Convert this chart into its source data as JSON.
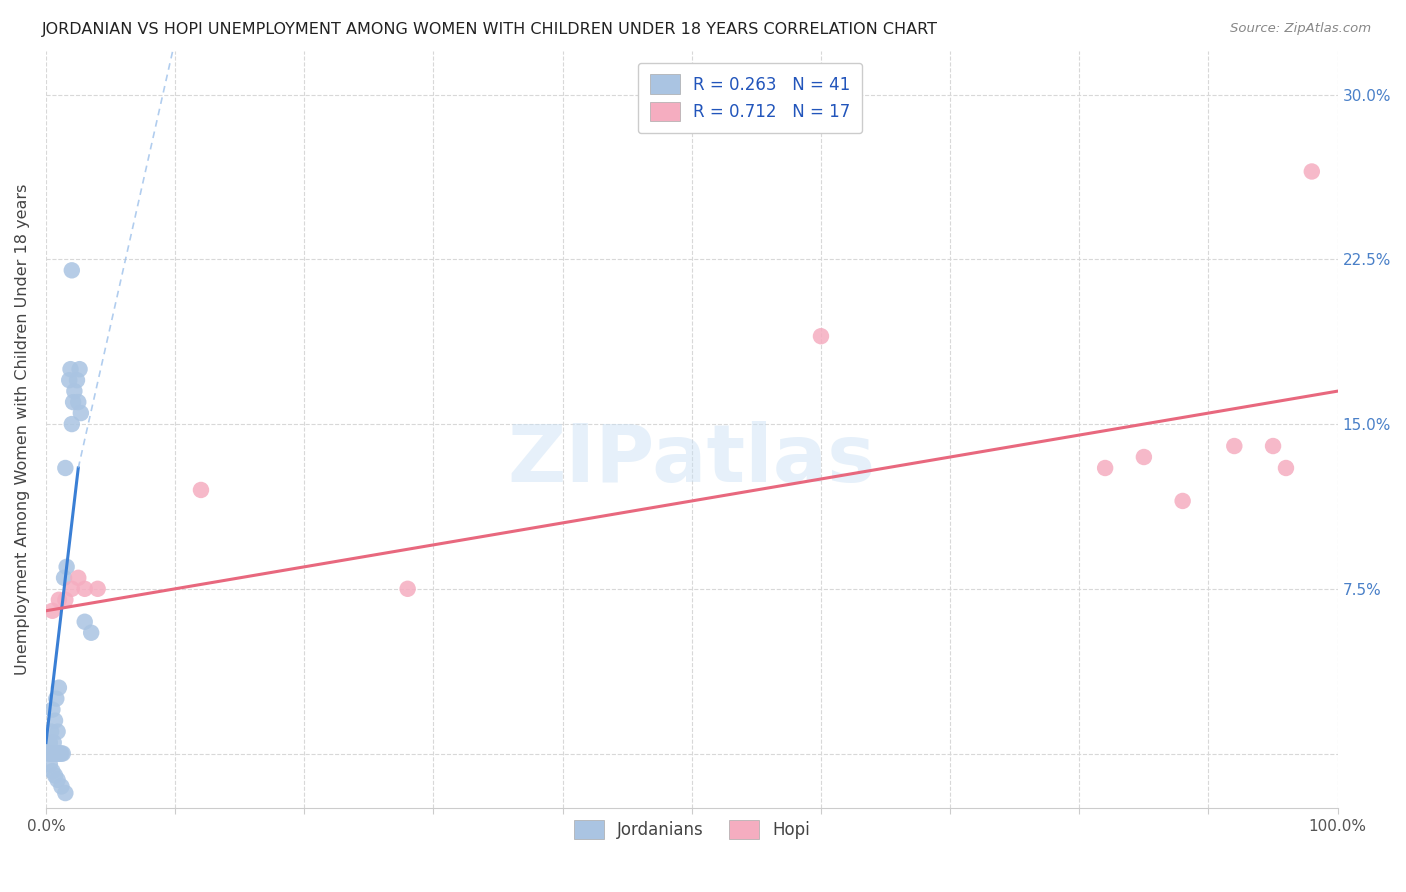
{
  "title": "JORDANIAN VS HOPI UNEMPLOYMENT AMONG WOMEN WITH CHILDREN UNDER 18 YEARS CORRELATION CHART",
  "source": "Source: ZipAtlas.com",
  "ylabel": "Unemployment Among Women with Children Under 18 years",
  "xlim": [
    0.0,
    1.0
  ],
  "ylim": [
    -0.025,
    0.32
  ],
  "xticks": [
    0.0,
    0.1,
    0.2,
    0.3,
    0.4,
    0.5,
    0.6,
    0.7,
    0.8,
    0.9,
    1.0
  ],
  "xtick_labels": [
    "0.0%",
    "",
    "",
    "",
    "",
    "",
    "",
    "",
    "",
    "",
    "100.0%"
  ],
  "yticks": [
    0.0,
    0.075,
    0.15,
    0.225,
    0.3
  ],
  "ytick_labels": [
    "",
    "7.5%",
    "15.0%",
    "22.5%",
    "30.0%"
  ],
  "background_color": "#ffffff",
  "grid_color": "#d8d8d8",
  "watermark_text": "ZIPatlas",
  "jordanian_color": "#aac4e2",
  "hopi_color": "#f5adc0",
  "jordanian_line_color": "#3a7fd5",
  "jordanian_dashed_color": "#90b8e8",
  "hopi_line_color": "#e8687e",
  "jordanian_scatter": [
    [
      0.002,
      0.0
    ],
    [
      0.003,
      0.0
    ],
    [
      0.004,
      0.0
    ],
    [
      0.005,
      0.0
    ],
    [
      0.006,
      0.0
    ],
    [
      0.007,
      0.0
    ],
    [
      0.008,
      0.0
    ],
    [
      0.009,
      0.0
    ],
    [
      0.01,
      0.0
    ],
    [
      0.011,
      0.0
    ],
    [
      0.012,
      0.0
    ],
    [
      0.013,
      0.0
    ],
    [
      0.003,
      0.005
    ],
    [
      0.006,
      0.005
    ],
    [
      0.009,
      0.01
    ],
    [
      0.004,
      0.01
    ],
    [
      0.007,
      0.015
    ],
    [
      0.005,
      0.02
    ],
    [
      0.008,
      0.025
    ],
    [
      0.01,
      0.03
    ],
    [
      0.014,
      0.08
    ],
    [
      0.016,
      0.085
    ],
    [
      0.015,
      0.13
    ],
    [
      0.02,
      0.15
    ],
    [
      0.021,
      0.16
    ],
    [
      0.022,
      0.165
    ],
    [
      0.024,
      0.17
    ],
    [
      0.026,
      0.175
    ],
    [
      0.018,
      0.17
    ],
    [
      0.019,
      0.175
    ],
    [
      0.025,
      0.16
    ],
    [
      0.027,
      0.155
    ],
    [
      0.02,
      0.22
    ],
    [
      0.03,
      0.06
    ],
    [
      0.035,
      0.055
    ],
    [
      0.003,
      -0.005
    ],
    [
      0.005,
      -0.008
    ],
    [
      0.007,
      -0.01
    ],
    [
      0.009,
      -0.012
    ],
    [
      0.012,
      -0.015
    ],
    [
      0.015,
      -0.018
    ]
  ],
  "hopi_scatter": [
    [
      0.005,
      0.065
    ],
    [
      0.01,
      0.07
    ],
    [
      0.015,
      0.07
    ],
    [
      0.02,
      0.075
    ],
    [
      0.025,
      0.08
    ],
    [
      0.03,
      0.075
    ],
    [
      0.04,
      0.075
    ],
    [
      0.12,
      0.12
    ],
    [
      0.28,
      0.075
    ],
    [
      0.6,
      0.19
    ],
    [
      0.82,
      0.13
    ],
    [
      0.85,
      0.135
    ],
    [
      0.88,
      0.115
    ],
    [
      0.92,
      0.14
    ],
    [
      0.95,
      0.14
    ],
    [
      0.96,
      0.13
    ],
    [
      0.98,
      0.265
    ]
  ],
  "jordanian_trendline_solid": [
    [
      0.0,
      0.005
    ],
    [
      0.025,
      0.13
    ]
  ],
  "jordanian_trendline_dashed": [
    [
      0.025,
      0.13
    ],
    [
      0.36,
      1.0
    ]
  ],
  "hopi_trendline": [
    [
      0.0,
      0.065
    ],
    [
      1.0,
      0.165
    ]
  ]
}
